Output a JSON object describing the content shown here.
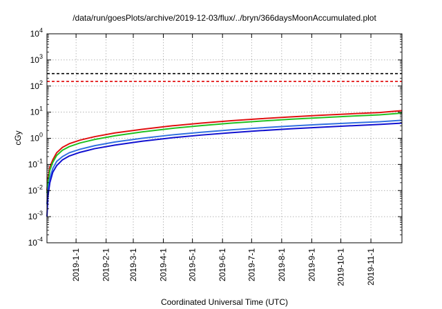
{
  "chart_data": {
    "type": "line",
    "title": "/data/run/goesPlots/archive/2019-12-03/flux/../bryn/366daysMoonAccumulated.plot",
    "xlabel": "Coordinated Universal Time (UTC)",
    "ylabel": "cGy",
    "y_scale": "log",
    "ylim": [
      0.0001,
      10000
    ],
    "xlim": [
      "2018-12-02",
      "2019-12-03"
    ],
    "y_ticks": [
      {
        "value": 0.0001,
        "base": "10",
        "exp": "-4"
      },
      {
        "value": 0.001,
        "base": "10",
        "exp": "-3"
      },
      {
        "value": 0.01,
        "base": "10",
        "exp": "-2"
      },
      {
        "value": 0.1,
        "base": "10",
        "exp": "-1"
      },
      {
        "value": 1,
        "base": "10",
        "exp": "0"
      },
      {
        "value": 10,
        "base": "10",
        "exp": "1"
      },
      {
        "value": 100,
        "base": "10",
        "exp": "2"
      },
      {
        "value": 1000,
        "base": "10",
        "exp": "3"
      },
      {
        "value": 10000,
        "base": "10",
        "exp": "4"
      }
    ],
    "x_ticks": [
      {
        "date": "2019-01-01",
        "label": "2019-1-1"
      },
      {
        "date": "2019-02-01",
        "label": "2019-2-1"
      },
      {
        "date": "2019-03-01",
        "label": "2019-3-1"
      },
      {
        "date": "2019-04-01",
        "label": "2019-4-1"
      },
      {
        "date": "2019-05-01",
        "label": "2019-5-1"
      },
      {
        "date": "2019-06-01",
        "label": "2019-6-1"
      },
      {
        "date": "2019-07-01",
        "label": "2019-7-1"
      },
      {
        "date": "2019-08-01",
        "label": "2019-8-1"
      },
      {
        "date": "2019-09-01",
        "label": "2019-9-1"
      },
      {
        "date": "2019-10-01",
        "label": "2019-10-1"
      },
      {
        "date": "2019-11-01",
        "label": "2019-11-1"
      }
    ],
    "grid": true,
    "reference_lines": [
      {
        "y": 300,
        "color": "#000000",
        "dash": "dashed"
      },
      {
        "y": 150,
        "color": "#e00000",
        "dash": "dashed"
      }
    ],
    "series": [
      {
        "color": "#e01010",
        "points": [
          [
            "2018-12-02",
            0.01
          ],
          [
            "2018-12-03",
            0.03
          ],
          [
            "2018-12-05",
            0.08
          ],
          [
            "2018-12-08",
            0.15
          ],
          [
            "2018-12-12",
            0.28
          ],
          [
            "2018-12-18",
            0.45
          ],
          [
            "2018-12-25",
            0.62
          ],
          [
            "2019-01-05",
            0.85
          ],
          [
            "2019-01-20",
            1.15
          ],
          [
            "2019-02-10",
            1.6
          ],
          [
            "2019-03-10",
            2.2
          ],
          [
            "2019-04-10",
            3.0
          ],
          [
            "2019-05-10",
            3.8
          ],
          [
            "2019-06-10",
            4.7
          ],
          [
            "2019-07-10",
            5.6
          ],
          [
            "2019-08-10",
            6.6
          ],
          [
            "2019-09-10",
            7.6
          ],
          [
            "2019-10-10",
            8.6
          ],
          [
            "2019-11-10",
            9.7
          ],
          [
            "2019-12-03",
            11.5
          ]
        ]
      },
      {
        "color": "#20c020",
        "points": [
          [
            "2018-12-02",
            0.008
          ],
          [
            "2018-12-03",
            0.02
          ],
          [
            "2018-12-05",
            0.06
          ],
          [
            "2018-12-08",
            0.12
          ],
          [
            "2018-12-12",
            0.22
          ],
          [
            "2018-12-18",
            0.35
          ],
          [
            "2018-12-25",
            0.48
          ],
          [
            "2019-01-05",
            0.66
          ],
          [
            "2019-01-20",
            0.9
          ],
          [
            "2019-02-10",
            1.25
          ],
          [
            "2019-03-10",
            1.75
          ],
          [
            "2019-04-10",
            2.4
          ],
          [
            "2019-05-10",
            3.05
          ],
          [
            "2019-06-10",
            3.8
          ],
          [
            "2019-07-10",
            4.55
          ],
          [
            "2019-08-10",
            5.35
          ],
          [
            "2019-09-10",
            6.15
          ],
          [
            "2019-10-10",
            7.0
          ],
          [
            "2019-11-10",
            7.9
          ],
          [
            "2019-12-03",
            9.2
          ]
        ]
      },
      {
        "color": "#3070e0",
        "points": [
          [
            "2018-12-02",
            0.003
          ],
          [
            "2018-12-03",
            0.01
          ],
          [
            "2018-12-05",
            0.03
          ],
          [
            "2018-12-08",
            0.07
          ],
          [
            "2018-12-12",
            0.13
          ],
          [
            "2018-12-18",
            0.2
          ],
          [
            "2018-12-25",
            0.28
          ],
          [
            "2019-01-05",
            0.38
          ],
          [
            "2019-01-20",
            0.52
          ],
          [
            "2019-02-10",
            0.72
          ],
          [
            "2019-03-10",
            1.0
          ],
          [
            "2019-04-10",
            1.35
          ],
          [
            "2019-05-10",
            1.7
          ],
          [
            "2019-06-10",
            2.1
          ],
          [
            "2019-07-10",
            2.5
          ],
          [
            "2019-08-10",
            2.95
          ],
          [
            "2019-09-10",
            3.4
          ],
          [
            "2019-10-10",
            3.85
          ],
          [
            "2019-11-10",
            4.3
          ],
          [
            "2019-12-03",
            4.9
          ]
        ]
      },
      {
        "color": "#1010d0",
        "points": [
          [
            "2018-12-02",
            0.001
          ],
          [
            "2018-12-03",
            0.006
          ],
          [
            "2018-12-05",
            0.02
          ],
          [
            "2018-12-08",
            0.05
          ],
          [
            "2018-12-12",
            0.09
          ],
          [
            "2018-12-18",
            0.15
          ],
          [
            "2018-12-25",
            0.21
          ],
          [
            "2019-01-05",
            0.29
          ],
          [
            "2019-01-20",
            0.4
          ],
          [
            "2019-02-10",
            0.55
          ],
          [
            "2019-03-10",
            0.77
          ],
          [
            "2019-04-10",
            1.05
          ],
          [
            "2019-05-10",
            1.33
          ],
          [
            "2019-06-10",
            1.64
          ],
          [
            "2019-07-10",
            1.96
          ],
          [
            "2019-08-10",
            2.3
          ],
          [
            "2019-09-10",
            2.65
          ],
          [
            "2019-10-10",
            3.0
          ],
          [
            "2019-11-10",
            3.4
          ],
          [
            "2019-12-03",
            3.8
          ]
        ]
      }
    ]
  }
}
